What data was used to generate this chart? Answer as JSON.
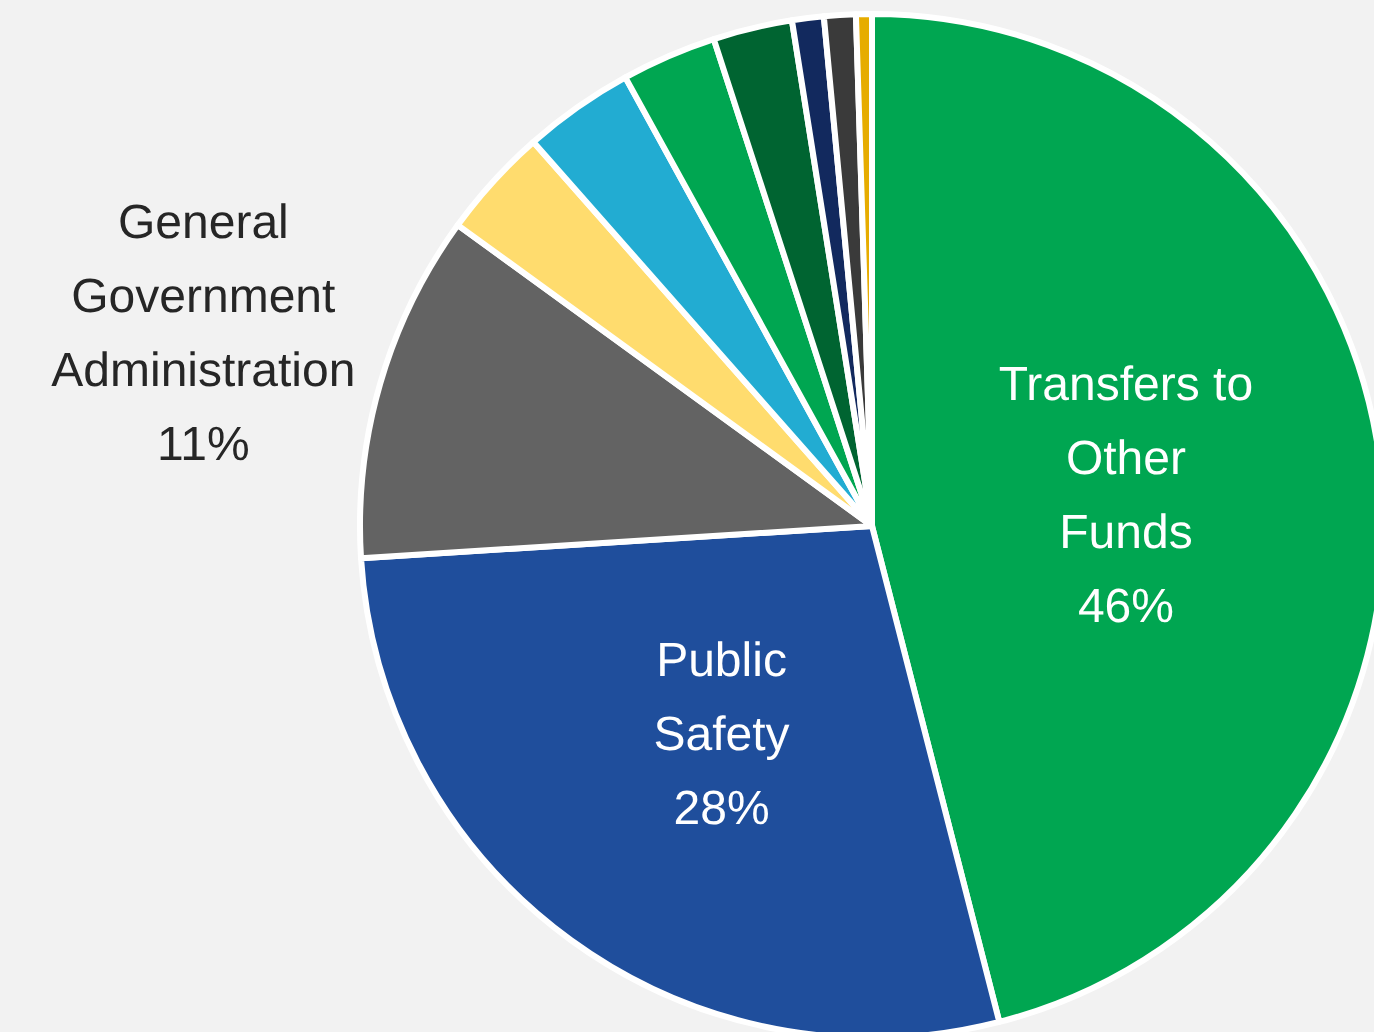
{
  "chart_data": {
    "type": "pie",
    "categories": [
      "Transfers to Other Funds",
      "Public Safety",
      "General Government Administration",
      null,
      null,
      null,
      null,
      null,
      null,
      null
    ],
    "values": [
      46,
      28,
      11,
      3.5,
      3.5,
      3,
      2.5,
      1,
      1,
      0.5
    ],
    "colors": [
      "#00a651",
      "#1f4e9c",
      "#636363",
      "#ffdc6e",
      "#22acd2",
      "#00a651",
      "#006431",
      "#12295e",
      "#3a3a3a",
      "#e6ac00"
    ],
    "value_labels": [
      "46%",
      "28%",
      "11%",
      null,
      null,
      null,
      null,
      null,
      null,
      null
    ]
  }
}
